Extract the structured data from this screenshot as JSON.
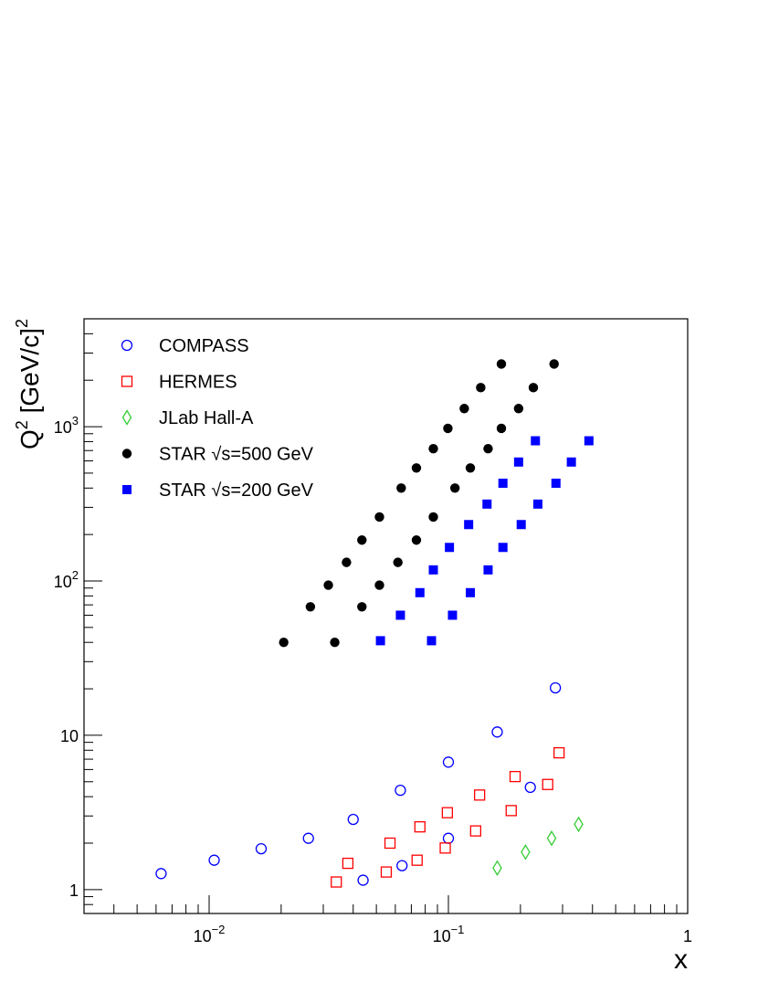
{
  "chart_data": {
    "type": "scatter",
    "xlabel": "x",
    "ylabel": {
      "base": "Q",
      "sup": "2",
      "unit": " [GeV/c]",
      "unit_sup": "2"
    },
    "xscale": "log",
    "yscale": "log",
    "xlim": [
      0.003,
      1
    ],
    "ylim": [
      0.7,
      5000
    ],
    "x_tick_labels": [
      {
        "value": 0.01,
        "base": "10",
        "exp": "−2"
      },
      {
        "value": 0.1,
        "base": "10",
        "exp": "−1"
      },
      {
        "value": 1,
        "base": "1",
        "exp": ""
      }
    ],
    "y_tick_labels": [
      {
        "value": 1,
        "base": "1",
        "exp": ""
      },
      {
        "value": 10,
        "base": "10",
        "exp": ""
      },
      {
        "value": 100,
        "base": "10",
        "exp": "2"
      },
      {
        "value": 1000,
        "base": "10",
        "exp": "3"
      }
    ],
    "legend_position": "top-left",
    "series": [
      {
        "name": "COMPASS",
        "marker": "open-circle",
        "color": "#0000ff",
        "points": [
          [
            0.0063,
            1.27
          ],
          [
            0.0105,
            1.55
          ],
          [
            0.0165,
            1.84
          ],
          [
            0.026,
            2.15
          ],
          [
            0.04,
            2.85
          ],
          [
            0.044,
            1.15
          ],
          [
            0.063,
            4.4
          ],
          [
            0.064,
            1.43
          ],
          [
            0.1,
            6.7
          ],
          [
            0.1,
            2.15
          ],
          [
            0.16,
            10.5
          ],
          [
            0.22,
            4.6
          ],
          [
            0.28,
            20.3
          ]
        ]
      },
      {
        "name": "HERMES",
        "marker": "open-square",
        "color": "#ff0000",
        "points": [
          [
            0.034,
            1.12
          ],
          [
            0.038,
            1.48
          ],
          [
            0.055,
            1.3
          ],
          [
            0.057,
            2.0
          ],
          [
            0.074,
            1.55
          ],
          [
            0.076,
            2.55
          ],
          [
            0.097,
            1.86
          ],
          [
            0.099,
            3.15
          ],
          [
            0.13,
            2.4
          ],
          [
            0.135,
            4.1
          ],
          [
            0.183,
            3.25
          ],
          [
            0.19,
            5.4
          ],
          [
            0.26,
            4.8
          ],
          [
            0.29,
            7.7
          ]
        ]
      },
      {
        "name": "JLab Hall-A",
        "marker": "open-diamond",
        "color": "#33cc33",
        "points": [
          [
            0.16,
            1.38
          ],
          [
            0.21,
            1.75
          ],
          [
            0.27,
            2.15
          ],
          [
            0.35,
            2.65
          ]
        ]
      },
      {
        "name": "STAR √s=500 GeV",
        "marker": "filled-circle",
        "color": "#000000",
        "points": [
          [
            0.0205,
            40
          ],
          [
            0.0265,
            68
          ],
          [
            0.0315,
            94
          ],
          [
            0.0375,
            132
          ],
          [
            0.0435,
            184
          ],
          [
            0.0515,
            260
          ],
          [
            0.0635,
            400
          ],
          [
            0.0735,
            540
          ],
          [
            0.0865,
            720
          ],
          [
            0.0995,
            975
          ],
          [
            0.1165,
            1310
          ],
          [
            0.1365,
            1790
          ],
          [
            0.1665,
            2550
          ],
          [
            0.0335,
            40
          ],
          [
            0.0435,
            68
          ],
          [
            0.0515,
            94
          ],
          [
            0.0615,
            132
          ],
          [
            0.0735,
            184
          ],
          [
            0.0865,
            260
          ],
          [
            0.1065,
            400
          ],
          [
            0.1235,
            540
          ],
          [
            0.1465,
            720
          ],
          [
            0.1665,
            975
          ],
          [
            0.1965,
            1310
          ],
          [
            0.2265,
            1790
          ],
          [
            0.2765,
            2550
          ]
        ]
      },
      {
        "name": "STAR √s=200 GeV",
        "marker": "filled-square",
        "color": "#0000ff",
        "points": [
          [
            0.052,
            41
          ],
          [
            0.063,
            60
          ],
          [
            0.076,
            84
          ],
          [
            0.0865,
            118
          ],
          [
            0.101,
            165
          ],
          [
            0.1215,
            232
          ],
          [
            0.145,
            315
          ],
          [
            0.169,
            430
          ],
          [
            0.1965,
            590
          ],
          [
            0.231,
            810
          ],
          [
            0.085,
            41
          ],
          [
            0.104,
            60
          ],
          [
            0.1235,
            84
          ],
          [
            0.1465,
            118
          ],
          [
            0.169,
            165
          ],
          [
            0.2015,
            232
          ],
          [
            0.2365,
            315
          ],
          [
            0.2815,
            430
          ],
          [
            0.3265,
            590
          ],
          [
            0.3865,
            810
          ]
        ]
      }
    ]
  }
}
